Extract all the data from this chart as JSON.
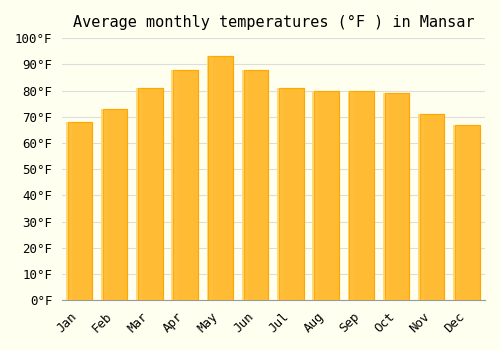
{
  "title": "Average monthly temperatures (°F ) in Mansar",
  "months": [
    "Jan",
    "Feb",
    "Mar",
    "Apr",
    "May",
    "Jun",
    "Jul",
    "Aug",
    "Sep",
    "Oct",
    "Nov",
    "Dec"
  ],
  "values": [
    68,
    73,
    81,
    88,
    93,
    88,
    81,
    80,
    80,
    79,
    71,
    67
  ],
  "bar_color_face": "#FFBB33",
  "bar_color_edge": "#FFA500",
  "background_color": "#FFFFF0",
  "grid_color": "#DDDDDD",
  "ylim": [
    0,
    100
  ],
  "yticks": [
    0,
    10,
    20,
    30,
    40,
    50,
    60,
    70,
    80,
    90,
    100
  ],
  "ytick_labels": [
    "0°F",
    "10°F",
    "20°F",
    "30°F",
    "40°F",
    "50°F",
    "60°F",
    "70°F",
    "80°F",
    "90°F",
    "100°F"
  ],
  "title_fontsize": 11,
  "tick_fontsize": 9,
  "font_family": "monospace"
}
